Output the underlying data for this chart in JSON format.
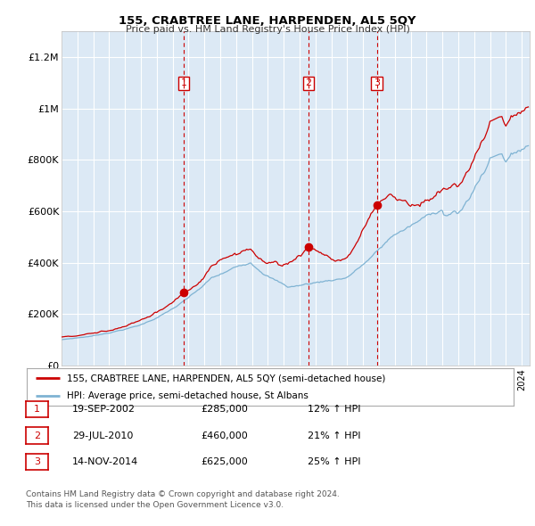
{
  "title": "155, CRABTREE LANE, HARPENDEN, AL5 5QY",
  "subtitle": "Price paid vs. HM Land Registry's House Price Index (HPI)",
  "background_color": "#dce9f5",
  "red_line_label": "155, CRABTREE LANE, HARPENDEN, AL5 5QY (semi-detached house)",
  "blue_line_label": "HPI: Average price, semi-detached house, St Albans",
  "purchase_dates_display": [
    "19-SEP-2002",
    "29-JUL-2010",
    "14-NOV-2014"
  ],
  "purchase_prices_display": [
    "£285,000",
    "£460,000",
    "£625,000"
  ],
  "purchase_hpi_display": [
    "12% ↑ HPI",
    "21% ↑ HPI",
    "25% ↑ HPI"
  ],
  "ylim": [
    0,
    1300000
  ],
  "yticks": [
    0,
    200000,
    400000,
    600000,
    800000,
    1000000,
    1200000
  ],
  "ytick_labels": [
    "£0",
    "£200K",
    "£400K",
    "£600K",
    "£800K",
    "£1M",
    "£1.2M"
  ],
  "footer_line1": "Contains HM Land Registry data © Crown copyright and database right 2024.",
  "footer_line2": "This data is licensed under the Open Government Licence v3.0.",
  "red_color": "#cc0000",
  "blue_color": "#7fb3d3",
  "vline_color": "#cc0000",
  "dot_color": "#cc0000",
  "grid_color": "#ffffff",
  "purchase_years": [
    2002.71,
    2010.57,
    2014.87
  ],
  "purchase_prices": [
    285000,
    460000,
    625000
  ],
  "xstart": 1995,
  "xend": 2024.5
}
